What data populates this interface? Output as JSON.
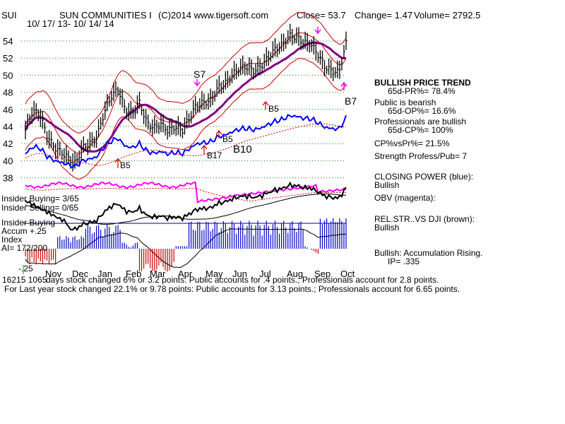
{
  "header": {
    "ticker": "SUI",
    "name": "SUN COMMUNITIES I",
    "copyright": "(C)2014 www.tigersoft.com",
    "close": "Close=  53.7",
    "change": "Change= 1.47",
    "volume": "Volume= 2792.5",
    "daterange": "10/ 17/ 13- 10/ 14/ 14"
  },
  "right_panel": {
    "trend_title": "BULLISH PRICE TREND",
    "pr": "65d-PR%= 78.4%",
    "public_title": "Public is bearish",
    "op": "65d-OP%= 16.6%",
    "pro_title": "Professionals are bullish",
    "cp": "65d-CP%= 100%",
    "cpvspr": "CP%vsPr%=  21.5%",
    "strength": "Strength Profess/Pub= 7",
    "closing_power": "CLOSING POWER (blue):",
    "closing_power_state": "Bullish",
    "obv": "OBV (magenta):",
    "relstr": "REL.STR..VS DJI (brown):",
    "relstr_state": "Bullish",
    "accum": "Bullish: Accumulation Rising.",
    "ip": "IP=  .335"
  },
  "left_labels": {
    "insider_buying": "Insider Buying= 3/65",
    "insider_selling": "Insider Selling= 0/65",
    "insider_buying2": "Insider Buying",
    "accum": "Accum  +.25",
    "index": "Index",
    "ai": "AI= 172/200",
    "minus25": "-.25"
  },
  "footer": {
    "line1_prefix": "16215 1065",
    "line1": "days stock changed  6% or  3.2 points:  Public accounts for  .4 points.;  Professionals account for  2.8 points.",
    "line2": "For Last year stock changed  22.1% or  9.78 points:  Public accounts for  3.13 points.;  Professionals account for  6.65 points."
  },
  "signals": [
    "S7",
    "B5",
    "B5",
    "B17",
    "B10",
    "B5",
    "B7"
  ],
  "colors": {
    "price": "#000000",
    "bands": "#cc0000",
    "ma": "#800080",
    "closing_power": "#0000ff",
    "obv": "#ff00ff",
    "relstr": "#000000",
    "accum_pos": "#0000cc",
    "accum_neg": "#cc0000"
  },
  "chart_data": {
    "type": "line",
    "x_ticks": [
      "Nov",
      "Dec",
      "Jan",
      "Feb",
      "Mar",
      "Apr",
      "May",
      "Jun",
      "Jul",
      "Aug",
      "Sep",
      "Oct"
    ],
    "y_ticks": [
      38,
      40,
      42,
      44,
      46,
      48,
      50,
      52,
      54
    ],
    "ylim": [
      36.5,
      55.5
    ],
    "grid": true,
    "series": [
      {
        "name": "price",
        "values": [
          43.6,
          45.8,
          45.5,
          43.0,
          41.6,
          41.0,
          40.3,
          39.7,
          41.5,
          42.0,
          42.7,
          45.5,
          47.5,
          48.4,
          46.0,
          45.5,
          46.8,
          44.5,
          43.8,
          44.3,
          43.5,
          44.0,
          43.5,
          45.0,
          46.5,
          46.8,
          47.0,
          48.5,
          49.0,
          50.0,
          50.8,
          51.0,
          50.5,
          51.0,
          52.0,
          53.0,
          53.5,
          54.6,
          54.5,
          53.8,
          53.7,
          52.5,
          51.0,
          50.5,
          50.3,
          53.7
        ]
      }
    ]
  }
}
